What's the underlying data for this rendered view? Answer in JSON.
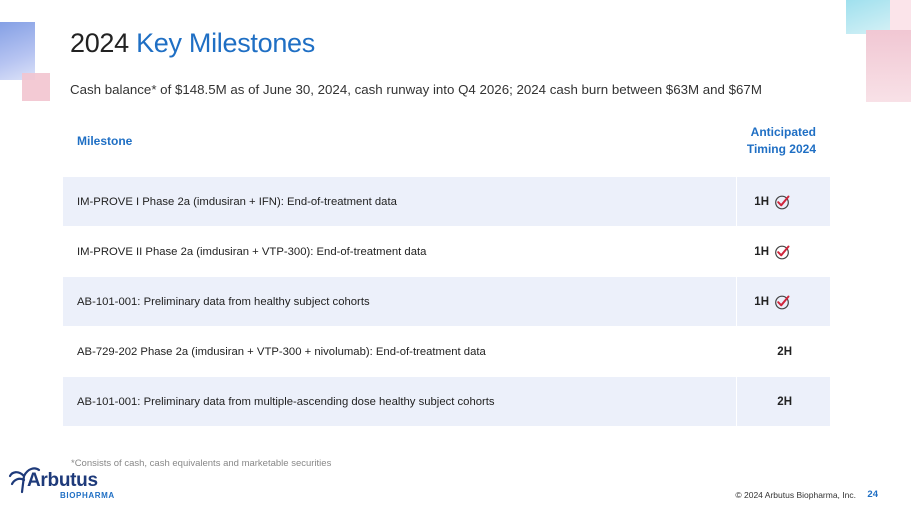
{
  "title": {
    "year": "2024",
    "main": "Key Milestones"
  },
  "subtitle": "Cash balance* of $148.5M as of June 30, 2024, cash runway into Q4 2026; 2024 cash burn between $63M and $67M",
  "table": {
    "header_milestone": "Milestone",
    "header_timing_line1": "Anticipated",
    "header_timing_line2": "Timing 2024",
    "rows": [
      {
        "milestone": "IM-PROVE I Phase 2a (imdusiran + IFN):  End-of-treatment data",
        "timing": "1H",
        "completed": true
      },
      {
        "milestone": "IM-PROVE II Phase 2a (imdusiran + VTP-300):  End-of-treatment data",
        "timing": "1H",
        "completed": true
      },
      {
        "milestone": "AB-101-001: Preliminary data from healthy subject cohorts",
        "timing": "1H",
        "completed": true
      },
      {
        "milestone": "AB-729-202 Phase 2a (imdusiran + VTP-300 + nivolumab):  End-of-treatment data",
        "timing": "2H",
        "completed": false
      },
      {
        "milestone": "AB-101-001: Preliminary data from multiple-ascending dose healthy subject cohorts",
        "timing": "2H",
        "completed": false
      }
    ]
  },
  "footnote": "*Consists of cash, cash equivalents and marketable securities",
  "logo": {
    "name": "Arbutus",
    "sub": "BIOPHARMA",
    "icon": "arbutus-tree-icon"
  },
  "copyright": "© 2024 Arbutus Biopharma, Inc.",
  "page_number": "24",
  "colors": {
    "accent": "#1f6fc4",
    "row_shade": "#ecf0fa",
    "check_red": "#d0263c",
    "logo_navy": "#1e3a7a"
  }
}
